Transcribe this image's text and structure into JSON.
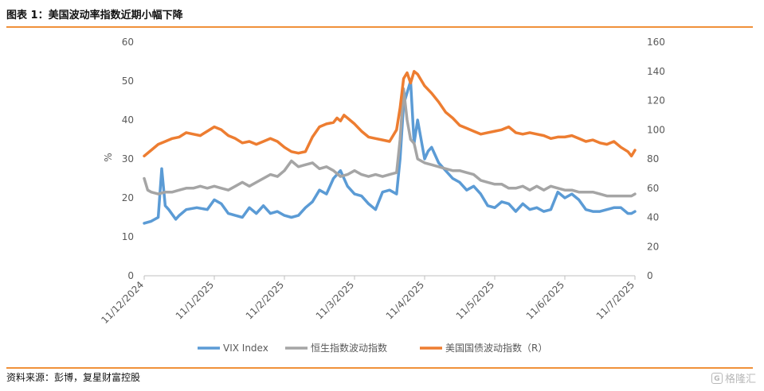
{
  "header": {
    "title": "图表 1：美国波动率指数近期小幅下降"
  },
  "footer": {
    "source": "资料来源：彭博，复星财富控股",
    "logo_text": "格隆汇",
    "logo_mark": "G"
  },
  "chart_data": {
    "type": "line",
    "title": "图表 1：美国波动率指数近期小幅下降",
    "x_ticks": [
      "11/12/2024",
      "11/1/2025",
      "11/2/2025",
      "11/3/2025",
      "11/4/2025",
      "11/5/2025",
      "11/6/2025",
      "11/7/2025"
    ],
    "x_tick_positions": [
      0,
      1,
      2,
      3,
      4,
      5,
      6,
      7
    ],
    "ylabel": "%",
    "ylim": [
      0,
      60
    ],
    "y_ticks": [
      0,
      10,
      20,
      30,
      40,
      50,
      60
    ],
    "y2lim": [
      0,
      160
    ],
    "y2_ticks": [
      0,
      20,
      40,
      60,
      80,
      100,
      120,
      140,
      160
    ],
    "legend_position": "bottom",
    "series": [
      {
        "name": "VIX Index",
        "axis": "left",
        "color": "#5b9bd5",
        "x": [
          0,
          0.1,
          0.2,
          0.25,
          0.3,
          0.35,
          0.45,
          0.5,
          0.6,
          0.75,
          0.9,
          1.0,
          1.1,
          1.2,
          1.3,
          1.4,
          1.5,
          1.6,
          1.7,
          1.8,
          1.9,
          2.0,
          2.1,
          2.2,
          2.3,
          2.4,
          2.5,
          2.6,
          2.7,
          2.8,
          2.9,
          3.0,
          3.1,
          3.2,
          3.3,
          3.4,
          3.5,
          3.6,
          3.65,
          3.7,
          3.8,
          3.85,
          3.9,
          3.95,
          4.0,
          4.05,
          4.1,
          4.15,
          4.2,
          4.3,
          4.4,
          4.5,
          4.6,
          4.7,
          4.8,
          4.9,
          5.0,
          5.1,
          5.2,
          5.3,
          5.4,
          5.5,
          5.6,
          5.7,
          5.8,
          5.9,
          6.0,
          6.1,
          6.2,
          6.3,
          6.4,
          6.5,
          6.6,
          6.7,
          6.8,
          6.9,
          6.95,
          7.0
        ],
        "values": [
          13.5,
          14,
          15,
          27.5,
          18,
          17,
          14.5,
          15.5,
          17,
          17.5,
          17,
          19.5,
          18.5,
          16,
          15.5,
          15,
          17.5,
          16,
          18,
          16,
          16.5,
          15.5,
          15,
          15.5,
          17.5,
          19,
          22,
          21,
          25,
          27,
          23,
          21,
          20.5,
          18.5,
          17,
          21.5,
          22,
          21,
          30,
          44,
          50,
          34,
          40,
          35,
          30,
          32,
          33,
          31,
          29,
          27,
          25,
          24,
          22,
          23,
          21,
          18,
          17.5,
          19,
          18.5,
          16.5,
          18.5,
          17,
          17.5,
          16.5,
          17,
          21.5,
          20,
          21,
          19.5,
          17,
          16.5,
          16.5,
          17,
          17.5,
          17.5,
          16,
          16,
          16.5
        ]
      },
      {
        "name": "恒生指数波动指数",
        "axis": "left",
        "color": "#a5a5a5",
        "x": [
          0,
          0.05,
          0.1,
          0.2,
          0.3,
          0.4,
          0.5,
          0.6,
          0.7,
          0.8,
          0.9,
          1.0,
          1.1,
          1.2,
          1.3,
          1.4,
          1.5,
          1.6,
          1.7,
          1.8,
          1.9,
          2.0,
          2.1,
          2.2,
          2.3,
          2.4,
          2.5,
          2.6,
          2.7,
          2.8,
          2.9,
          3.0,
          3.1,
          3.2,
          3.3,
          3.4,
          3.5,
          3.6,
          3.65,
          3.7,
          3.75,
          3.8,
          3.85,
          3.9,
          4.0,
          4.1,
          4.2,
          4.3,
          4.4,
          4.5,
          4.6,
          4.7,
          4.8,
          4.9,
          5.0,
          5.1,
          5.2,
          5.3,
          5.4,
          5.5,
          5.6,
          5.7,
          5.8,
          5.9,
          6.0,
          6.1,
          6.2,
          6.3,
          6.4,
          6.5,
          6.6,
          6.7,
          6.8,
          6.9,
          6.95,
          7.0
        ],
        "values": [
          25,
          22,
          21.5,
          21,
          21.5,
          21.5,
          22,
          22.5,
          22.5,
          23,
          22.5,
          23,
          22.5,
          22,
          23,
          24,
          23,
          24,
          25,
          26,
          25.5,
          27,
          29.5,
          28,
          28.5,
          29,
          27.5,
          28,
          27,
          25.5,
          26,
          27,
          26,
          25.5,
          26,
          25.5,
          26,
          26.5,
          35,
          48,
          40,
          35,
          34,
          30,
          29,
          28.5,
          28,
          27.5,
          27,
          27,
          26.5,
          26,
          24.5,
          24,
          23.5,
          23.5,
          22.5,
          22.5,
          23,
          22,
          23,
          22,
          23,
          22.5,
          22,
          22,
          21.5,
          21.5,
          21.5,
          21,
          20.5,
          20.5,
          20.5,
          20.5,
          20.5,
          21
        ]
      },
      {
        "name": "美国国债波动指数（R）",
        "axis": "right",
        "color": "#ed7d31",
        "x": [
          0,
          0.1,
          0.2,
          0.3,
          0.4,
          0.5,
          0.6,
          0.7,
          0.8,
          0.9,
          1.0,
          1.1,
          1.2,
          1.3,
          1.4,
          1.5,
          1.6,
          1.7,
          1.8,
          1.9,
          2.0,
          2.1,
          2.2,
          2.3,
          2.4,
          2.5,
          2.6,
          2.7,
          2.75,
          2.8,
          2.85,
          2.9,
          3.0,
          3.1,
          3.2,
          3.3,
          3.4,
          3.5,
          3.6,
          3.65,
          3.7,
          3.75,
          3.8,
          3.85,
          3.9,
          4.0,
          4.1,
          4.2,
          4.3,
          4.4,
          4.5,
          4.6,
          4.7,
          4.8,
          4.9,
          5.0,
          5.1,
          5.2,
          5.3,
          5.4,
          5.5,
          5.6,
          5.7,
          5.8,
          5.9,
          6.0,
          6.1,
          6.2,
          6.3,
          6.4,
          6.5,
          6.6,
          6.7,
          6.8,
          6.9,
          6.95,
          7.0
        ],
        "values": [
          82,
          86,
          90,
          92,
          94,
          95,
          98,
          97,
          96,
          99,
          102,
          100,
          96,
          94,
          91,
          92,
          90,
          92,
          94,
          92,
          88,
          85,
          84,
          85,
          95,
          102,
          104,
          105,
          108,
          106,
          110,
          108,
          104,
          99,
          95,
          94,
          93,
          92,
          100,
          115,
          135,
          139,
          132,
          140,
          138,
          130,
          125,
          119,
          112,
          108,
          103,
          101,
          99,
          97,
          98,
          99,
          100,
          102,
          98,
          97,
          98,
          97,
          96,
          94,
          95,
          95,
          96,
          94,
          92,
          93,
          91,
          90,
          92,
          88,
          85,
          82,
          86
        ]
      }
    ]
  }
}
